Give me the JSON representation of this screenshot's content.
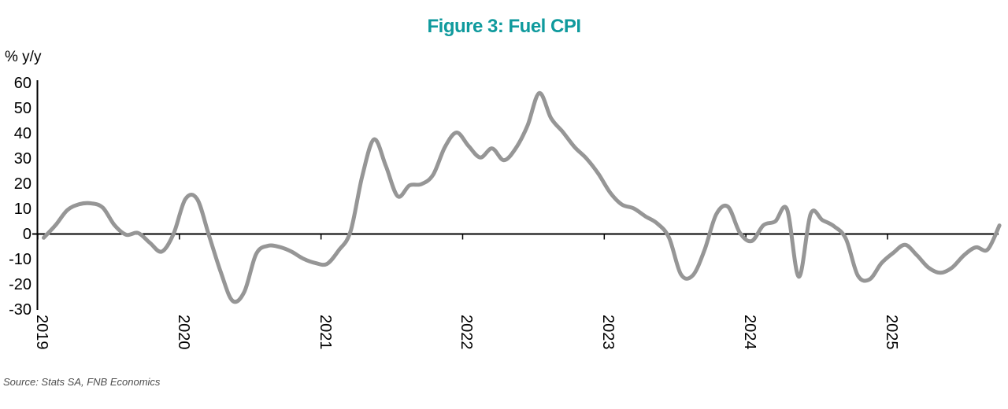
{
  "title": {
    "text": "Figure 3: Fuel CPI",
    "color": "#0F9A9D"
  },
  "axis": {
    "unit_label": "% y/y",
    "y_ticks": [
      60,
      50,
      40,
      30,
      20,
      10,
      0,
      -10,
      -20,
      -30
    ],
    "x_ticks": [
      "2019",
      "2020",
      "2021",
      "2022",
      "2023",
      "2024",
      "2025"
    ]
  },
  "source_note": "Source: Stats SA, FNB Economics",
  "style": {
    "title_color": "#0F9A9D",
    "line_color": "#969696",
    "axis_color": "#000000"
  },
  "chart_data": {
    "type": "line",
    "title": "Figure 3: Fuel CPI",
    "ylabel": "% y/y",
    "ylim": [
      -30,
      60
    ],
    "grid": false,
    "legend": "none",
    "x": [
      "2019-01",
      "2019-02",
      "2019-03",
      "2019-04",
      "2019-05",
      "2019-06",
      "2019-07",
      "2019-08",
      "2019-09",
      "2019-10",
      "2019-11",
      "2019-12",
      "2020-01",
      "2020-02",
      "2020-03",
      "2020-04",
      "2020-05",
      "2020-06",
      "2020-07",
      "2020-08",
      "2020-09",
      "2020-10",
      "2020-11",
      "2020-12",
      "2021-01",
      "2021-02",
      "2021-03",
      "2021-04",
      "2021-05",
      "2021-06",
      "2021-07",
      "2021-08",
      "2021-09",
      "2021-10",
      "2021-11",
      "2021-12",
      "2022-01",
      "2022-02",
      "2022-03",
      "2022-04",
      "2022-05",
      "2022-06",
      "2022-07",
      "2022-08",
      "2022-09",
      "2022-10",
      "2022-11",
      "2022-12",
      "2023-01",
      "2023-02",
      "2023-03",
      "2023-04",
      "2023-05",
      "2023-06",
      "2023-07",
      "2023-08",
      "2023-09",
      "2023-10",
      "2023-11",
      "2023-12",
      "2024-01",
      "2024-02",
      "2024-03",
      "2024-04",
      "2024-05",
      "2024-06",
      "2024-07",
      "2024-08",
      "2024-09",
      "2024-10",
      "2024-11",
      "2024-12",
      "2025-01",
      "2025-02",
      "2025-03",
      "2025-04",
      "2025-05",
      "2025-06",
      "2025-07",
      "2025-08",
      "2025-09",
      "2025-10"
    ],
    "series": [
      {
        "name": "Fuel CPI (% y/y)",
        "color": "#969696",
        "values": [
          -1.5,
          3.5,
          9.5,
          11.8,
          12.2,
          10.5,
          3.5,
          -0.3,
          0.4,
          -3.5,
          -7.0,
          0.0,
          13.8,
          13.9,
          -0.5,
          -15.0,
          -26.5,
          -23.0,
          -8.0,
          -4.7,
          -5.2,
          -7.0,
          -9.8,
          -11.5,
          -11.9,
          -6.5,
          1.0,
          23.0,
          37.6,
          27.0,
          15.0,
          19.3,
          19.8,
          23.5,
          34.5,
          40.3,
          35.0,
          30.4,
          34.0,
          29.3,
          34.0,
          43.0,
          56.0,
          46.0,
          40.5,
          34.5,
          30.0,
          24.0,
          16.5,
          11.7,
          10.2,
          7.0,
          4.2,
          -1.5,
          -16.0,
          -16.5,
          -6.5,
          7.8,
          10.8,
          0.5,
          -2.8,
          3.5,
          5.0,
          9.8,
          -17.0,
          8.0,
          5.5,
          3.0,
          -2.0,
          -16.5,
          -18.0,
          -11.6,
          -7.5,
          -4.3,
          -8.4,
          -13.4,
          -15.4,
          -13.3,
          -8.4,
          -5.3,
          -6.2,
          3.4
        ]
      }
    ]
  }
}
